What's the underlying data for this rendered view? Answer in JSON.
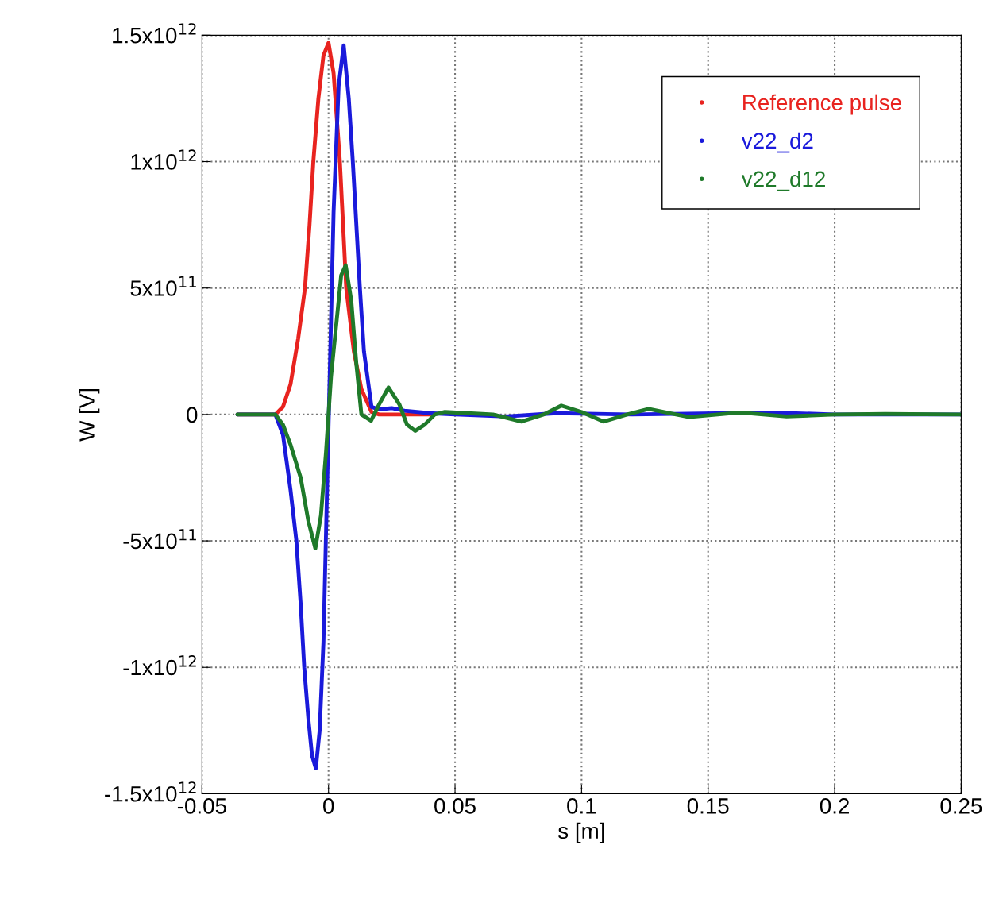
{
  "chart_data": {
    "type": "line",
    "xlabel": "s [m]",
    "ylabel": "W [V]",
    "xlim": [
      -0.05,
      0.25
    ],
    "xticks": [
      -0.05,
      0,
      0.05,
      0.1,
      0.15,
      0.2,
      0.25
    ],
    "ylim": [
      -1500000000000.0,
      1500000000000.0
    ],
    "yticks": [
      {
        "value": -1500000000000.0,
        "label": "-1.5x10$^{12}$"
      },
      {
        "value": -1000000000000.0,
        "label": "-1x10$^{12}$"
      },
      {
        "value": -500000000000.0,
        "label": "-5x10$^{11}$"
      },
      {
        "value": 0,
        "label": "0"
      },
      {
        "value": 500000000000.0,
        "label": "5x10$^{11}$"
      },
      {
        "value": 1000000000000.0,
        "label": "1x10$^{12}$"
      },
      {
        "value": 1500000000000.0,
        "label": "1.5x10$^{12}$"
      }
    ],
    "grid": true,
    "legend": "top right",
    "line_style": "solid",
    "marker": "none",
    "series": [
      {
        "name": "Reference pulse",
        "color": "#e8231f",
        "x": [
          -0.036,
          -0.021,
          -0.018,
          -0.015,
          -0.012,
          -0.0093,
          -0.0075,
          -0.006,
          -0.004,
          -0.002,
          0,
          0.002,
          0.0045,
          0.007,
          0.01,
          0.013,
          0.017,
          0.02,
          0.04
        ],
        "values": [
          0,
          0,
          30000000000.0,
          120000000000.0,
          300000000000.0,
          500000000000.0,
          750000000000.0,
          1000000000000.0,
          1250000000000.0,
          1420000000000.0,
          1470000000000.0,
          1350000000000.0,
          1000000000000.0,
          500000000000.0,
          250000000000.0,
          100000000000.0,
          10000000000.0,
          0,
          0
        ]
      },
      {
        "name": "v22_d2",
        "color": "#1a1adb",
        "x": [
          -0.036,
          -0.021,
          -0.018,
          -0.015,
          -0.0127,
          -0.011,
          -0.0096,
          -0.008,
          -0.0065,
          -0.005,
          -0.0035,
          -0.002,
          0,
          0.002,
          0.004,
          0.006,
          0.008,
          0.0096,
          0.0124,
          0.014,
          0.017,
          0.02,
          0.025,
          0.03,
          0.04,
          0.05,
          0.07,
          0.09,
          0.12,
          0.175,
          0.2,
          0.25
        ],
        "values": [
          0,
          0,
          -80000000000.0,
          -300000000000.0,
          -500000000000.0,
          -750000000000.0,
          -1000000000000.0,
          -1200000000000.0,
          -1350000000000.0,
          -1400000000000.0,
          -1250000000000.0,
          -900000000000.0,
          -50000000000.0,
          800000000000.0,
          1300000000000.0,
          1460000000000.0,
          1250000000000.0,
          1000000000000.0,
          500000000000.0,
          250000000000.0,
          30000000000.0,
          20000000000.0,
          25000000000.0,
          15000000000.0,
          5000000000.0,
          0,
          -8000000000.0,
          5000000000.0,
          0,
          8000000000.0,
          0,
          0
        ]
      },
      {
        "name": "v22_d12",
        "color": "#1f7a2a",
        "x": [
          -0.036,
          -0.021,
          -0.018,
          -0.015,
          -0.011,
          -0.008,
          -0.0052,
          -0.003,
          -0.001,
          0.001,
          0.003,
          0.005,
          0.0068,
          0.009,
          0.011,
          0.013,
          0.0168,
          0.02,
          0.0237,
          0.028,
          0.031,
          0.0343,
          0.038,
          0.042,
          0.046,
          0.055,
          0.065,
          0.0763,
          0.085,
          0.092,
          0.1,
          0.1087,
          0.118,
          0.1265,
          0.135,
          0.1425,
          0.1625,
          0.181,
          0.2,
          0.22,
          0.25
        ],
        "values": [
          0,
          0,
          -40000000000.0,
          -120000000000.0,
          -250000000000.0,
          -420000000000.0,
          -530000000000.0,
          -400000000000.0,
          -150000000000.0,
          150000000000.0,
          350000000000.0,
          550000000000.0,
          590000000000.0,
          450000000000.0,
          200000000000.0,
          0,
          -25000000000.0,
          40000000000.0,
          107000000000.0,
          40000000000.0,
          -40000000000.0,
          -65000000000.0,
          -40000000000.0,
          0,
          10000000000.0,
          5000000000.0,
          0,
          -28000000000.0,
          0,
          35000000000.0,
          10000000000.0,
          -28000000000.0,
          0,
          22000000000.0,
          5000000000.0,
          -10000000000.0,
          8000000000.0,
          -8000000000.0,
          0,
          2000000000.0,
          0
        ]
      }
    ]
  }
}
